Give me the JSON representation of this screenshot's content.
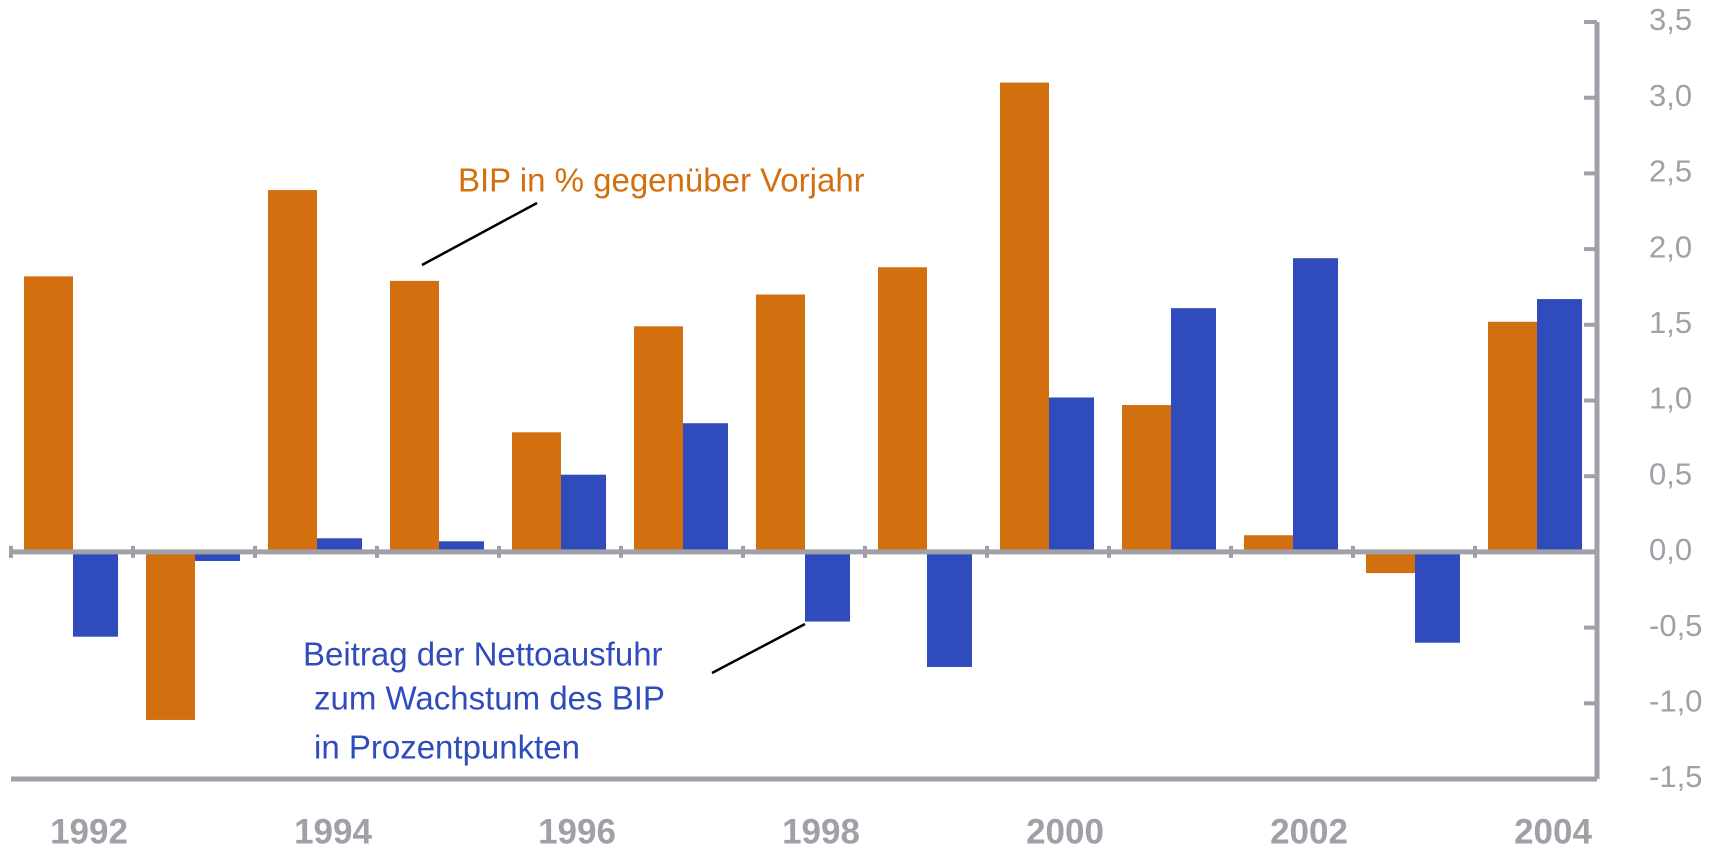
{
  "chart_data": {
    "type": "bar",
    "categories": [
      "1992",
      null,
      "1994",
      null,
      "1996",
      null,
      "1998",
      null,
      "2000",
      null,
      "2002",
      null,
      "2004"
    ],
    "series": [
      {
        "name": "BIP in % gegenüber Vorjahr",
        "color": "#d2700f",
        "values": [
          1.82,
          -1.11,
          2.39,
          1.79,
          0.79,
          1.49,
          1.7,
          1.88,
          3.1,
          0.97,
          0.11,
          -0.14,
          1.52
        ]
      },
      {
        "name": [
          "Beitrag der Nettoausfuhr",
          "zum Wachstum des BIP",
          "in Prozentpunkten"
        ],
        "color": "#304cbc",
        "values": [
          -0.56,
          -0.06,
          0.09,
          0.07,
          0.51,
          0.85,
          -0.46,
          -0.76,
          1.02,
          1.61,
          1.94,
          -0.6,
          1.67
        ]
      }
    ],
    "ylim": [
      -1.5,
      3.5
    ],
    "yticks": [
      {
        "value": -1.5,
        "label": "-1,5"
      },
      {
        "value": -1.0,
        "label": "-1,0"
      },
      {
        "value": -0.5,
        "label": "-0,5"
      },
      {
        "value": 0,
        "label": "0,0"
      },
      {
        "value": 0.5,
        "label": "0,5"
      },
      {
        "value": 1.0,
        "label": "1,0"
      },
      {
        "value": 1.5,
        "label": "1,5"
      },
      {
        "value": 2.0,
        "label": "2,0"
      },
      {
        "value": 2.5,
        "label": "2,5"
      },
      {
        "value": 3.0,
        "label": "3,0"
      },
      {
        "value": 3.5,
        "label": "3,5"
      }
    ],
    "axis_side": "right",
    "grid": false
  }
}
